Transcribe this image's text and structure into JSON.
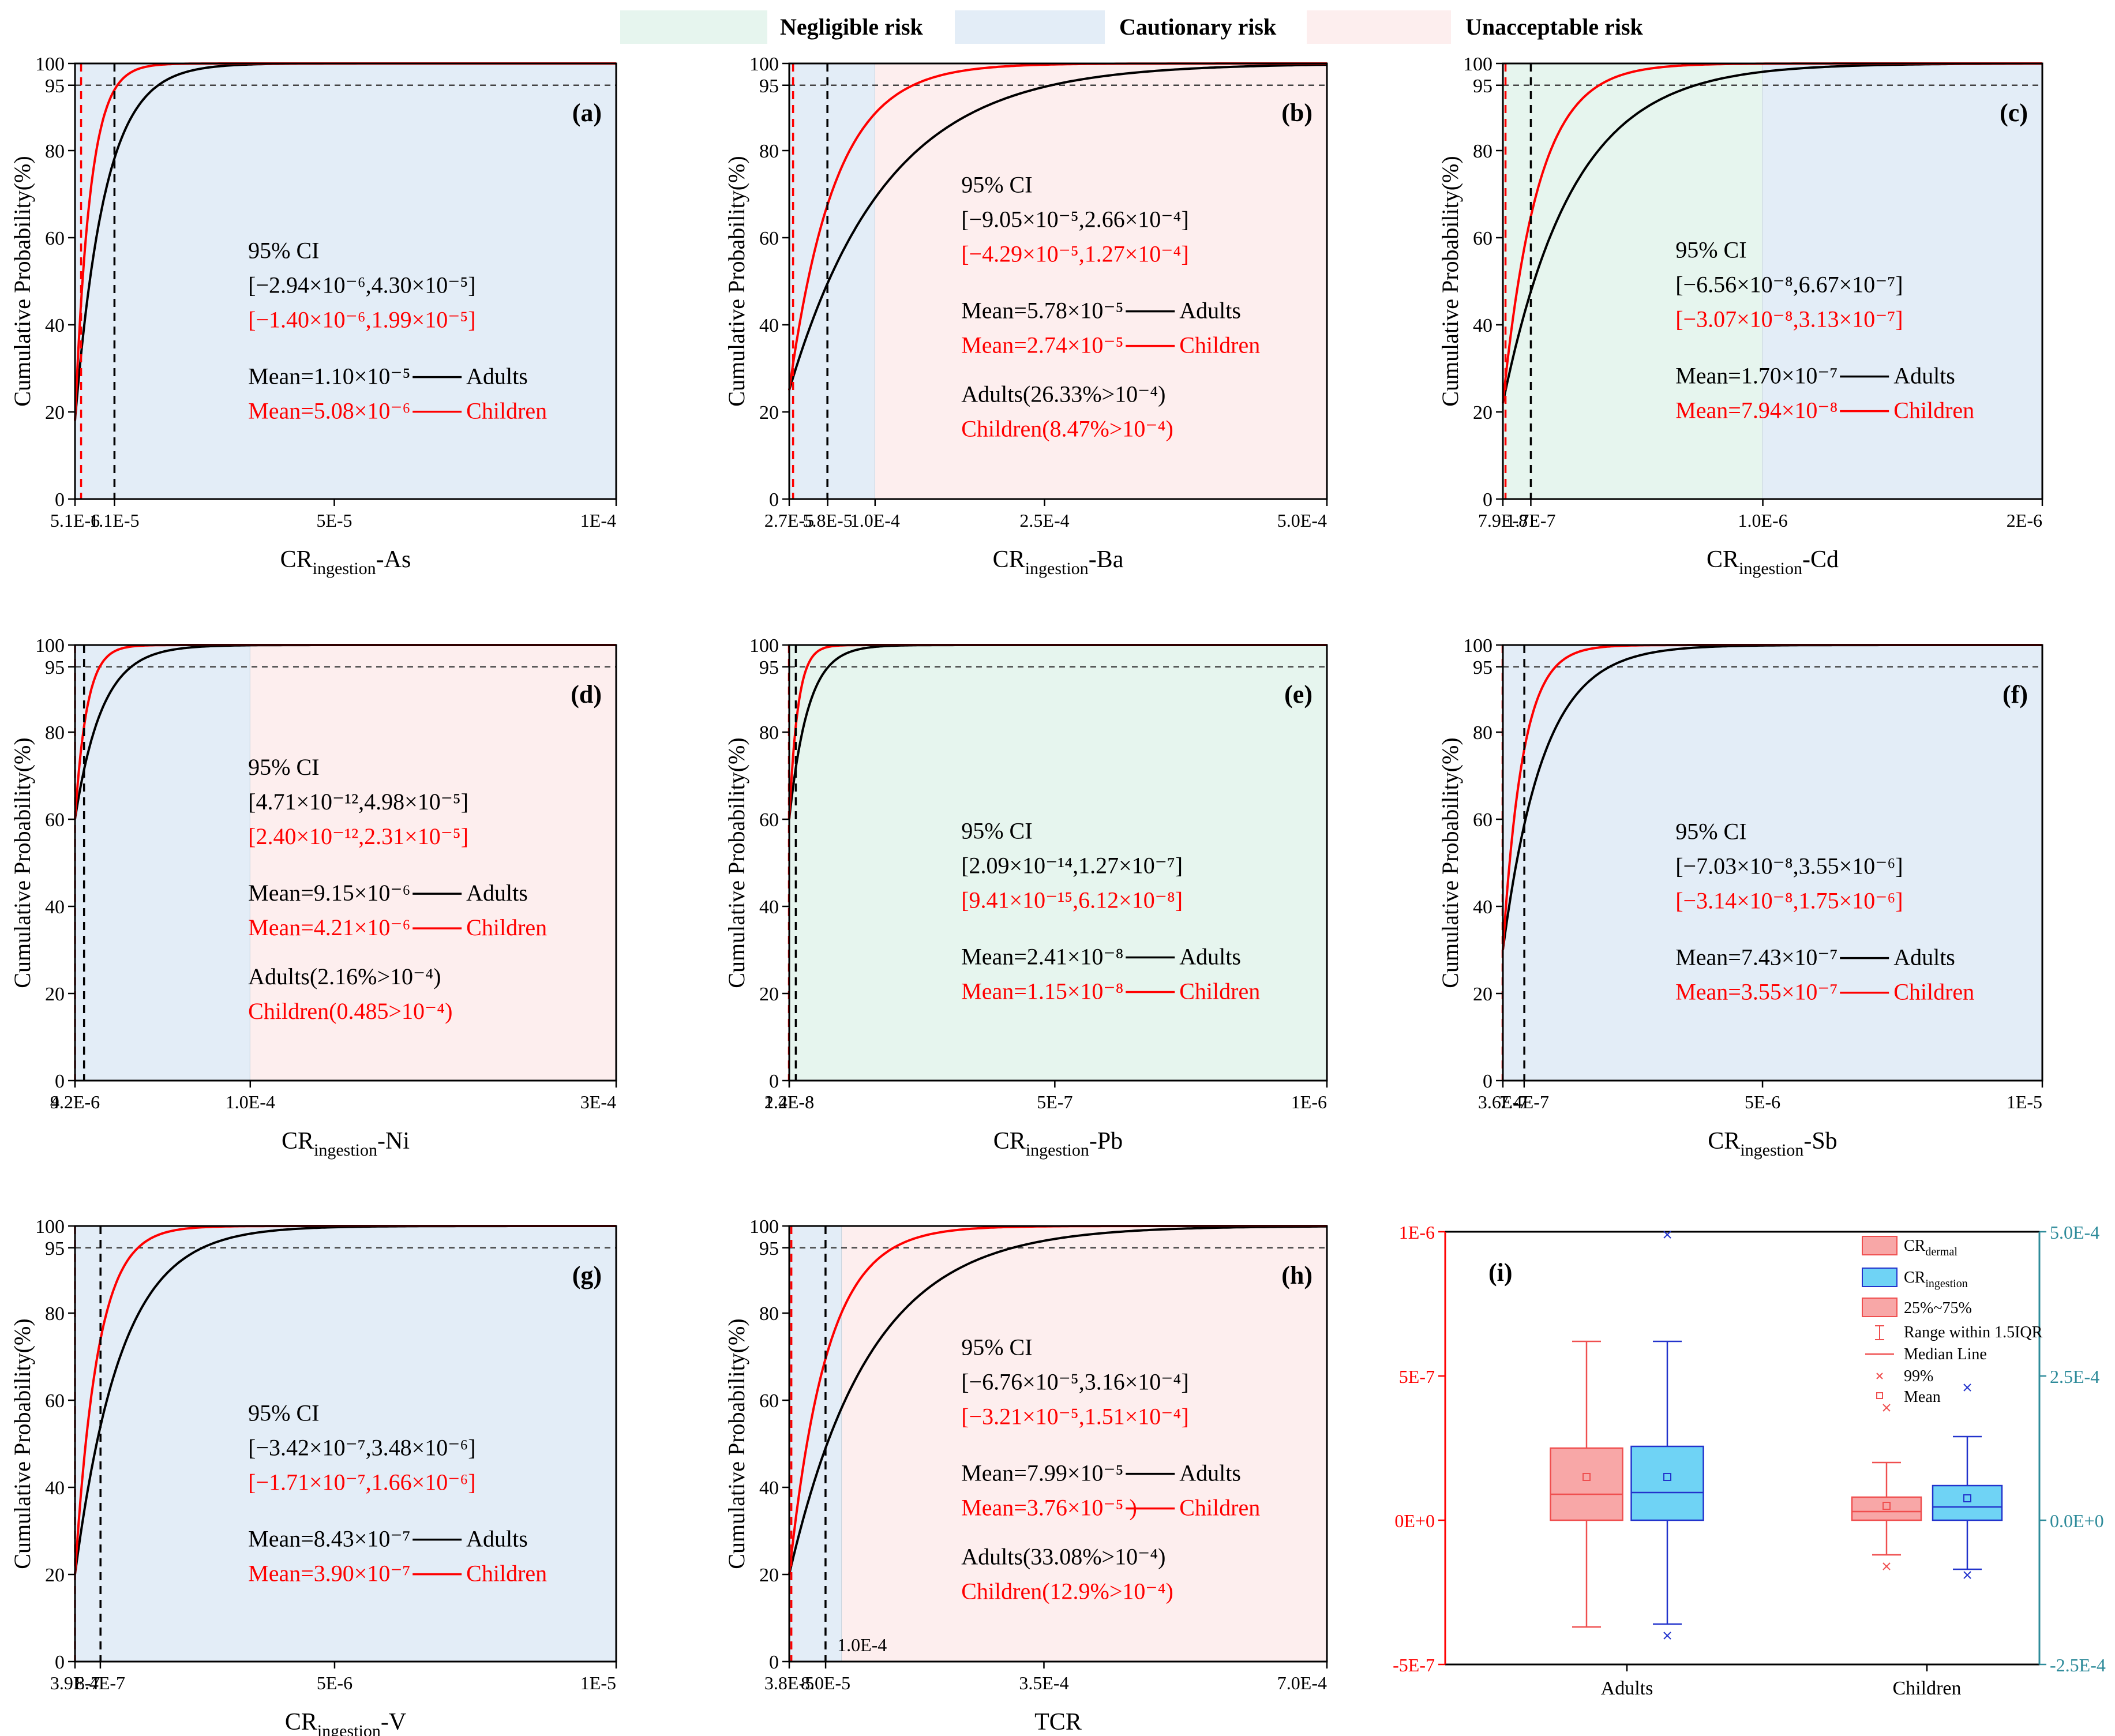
{
  "legend": {
    "negligible": "Negligible risk",
    "cautionary": "Cautionary risk",
    "unacceptable": "Unacceptable risk"
  },
  "colors": {
    "negligible": "#e6f5ee",
    "cautionary": "#e3edf7",
    "unacceptable": "#fdeeee",
    "adults": "#000000",
    "children": "#ff0000",
    "box_dermal": "#f8a7a7",
    "box_ingestion": "#6fd3f5",
    "right_axis": "#2e8b9a",
    "left_axis": "#ff0000"
  },
  "common": {
    "ylabel": "Cumulative Probability(%)",
    "yticks": [
      "20",
      "40",
      "60",
      "80",
      "95",
      "100"
    ],
    "zero": "0",
    "ci_title": "95% CI",
    "adults_label": "Adults",
    "children_label": "Children"
  },
  "chart_data": [
    {
      "panel": "(a)",
      "type": "line",
      "xlabel_main": "CR",
      "xlabel_sub": "ingestion",
      "xlabel_tail": "-As",
      "x_range": [
        "4.0E-6",
        "1E-4"
      ],
      "xticks": [
        "5.1E-6",
        "1.1E-5",
        "5E-5",
        "1E-4"
      ],
      "zones": [
        {
          "type": "cautionary",
          "from": "left",
          "to": "right"
        }
      ],
      "mean_lines": {
        "children": "5.08E-6",
        "adults": "1.10E-5"
      },
      "adults_curve": {
        "start_pct": 18,
        "shape": 0.055
      },
      "children_curve": {
        "start_pct": 18,
        "shape": 0.028
      },
      "ci_adults": "[−2.94×10⁻⁶,4.30×10⁻⁵]",
      "ci_children": "[−1.40×10⁻⁶,1.99×10⁻⁵]",
      "mean_adults": "Mean=1.10×10⁻⁵",
      "mean_children": "Mean=5.08×10⁻⁶",
      "exceed_adults": "",
      "exceed_children": ""
    },
    {
      "panel": "(b)",
      "type": "line",
      "xlabel_main": "CR",
      "xlabel_sub": "ingestion",
      "xlabel_tail": "-Ba",
      "x_range": [
        "2.4E-5",
        "5.0E-4"
      ],
      "xticks": [
        "2.7E-5",
        "5.8E-5",
        "1.0E-4",
        "2.5E-4",
        "5.0E-4"
      ],
      "zones": [
        {
          "type": "cautionary",
          "from": "left",
          "to": "1.0E-4"
        },
        {
          "type": "unacceptable",
          "from": "1.0E-4",
          "to": "right"
        }
      ],
      "mean_lines": {
        "children": "2.74E-5",
        "adults": "5.78E-5"
      },
      "adults_curve": {
        "start_pct": 25,
        "shape": 0.18
      },
      "children_curve": {
        "start_pct": 25,
        "shape": 0.085
      },
      "ci_adults": "[−9.05×10⁻⁵,2.66×10⁻⁴]",
      "ci_children": "[−4.29×10⁻⁵,1.27×10⁻⁴]",
      "mean_adults": "Mean=5.78×10⁻⁵",
      "mean_children": "Mean=2.74×10⁻⁵",
      "exceed_adults": "Adults(26.33%>10⁻⁴)",
      "exceed_children": "Children(8.47%>10⁻⁴)"
    },
    {
      "panel": "(c)",
      "type": "line",
      "xlabel_main": "CR",
      "xlabel_sub": "ingestion",
      "xlabel_tail": "-Cd",
      "x_range": [
        "7.0E-8",
        "2E-6"
      ],
      "xticks": [
        "7.9E-8",
        "1.7E-7",
        "1.0E-6",
        "2E-6"
      ],
      "zones": [
        {
          "type": "negligible",
          "from": "left",
          "to": "1.0E-6"
        },
        {
          "type": "cautionary",
          "from": "1.0E-6",
          "to": "right"
        }
      ],
      "mean_lines": {
        "children": "7.94E-8",
        "adults": "1.70E-7"
      },
      "adults_curve": {
        "start_pct": 22,
        "shape": 0.13
      },
      "children_curve": {
        "start_pct": 22,
        "shape": 0.065
      },
      "ci_adults": "[−6.56×10⁻⁸,6.67×10⁻⁷]",
      "ci_children": "[−3.07×10⁻⁸,3.13×10⁻⁷]",
      "mean_adults": "Mean=1.70×10⁻⁷",
      "mean_children": "Mean=7.94×10⁻⁸",
      "exceed_adults": "",
      "exceed_children": ""
    },
    {
      "panel": "(d)",
      "type": "line",
      "xlabel_main": "CR",
      "xlabel_sub": "ingestion",
      "xlabel_tail": "-Ni",
      "x_range": [
        "4.2E-6",
        "3E-4"
      ],
      "xticks": [
        "4.2E-6",
        "9.2E-6",
        "1.0E-4",
        "3E-4"
      ],
      "zones": [
        {
          "type": "cautionary",
          "from": "left",
          "to": "1.0E-4"
        },
        {
          "type": "unacceptable",
          "from": "1.0E-4",
          "to": "right"
        }
      ],
      "mean_lines": {
        "children": "4.21E-6",
        "adults": "9.15E-6"
      },
      "adults_curve": {
        "start_pct": 60,
        "shape": 0.05
      },
      "children_curve": {
        "start_pct": 60,
        "shape": 0.022
      },
      "ci_adults": "[4.71×10⁻¹²,4.98×10⁻⁵]",
      "ci_children": "[2.40×10⁻¹²,2.31×10⁻⁵]",
      "mean_adults": "Mean=9.15×10⁻⁶",
      "mean_children": "Mean=4.21×10⁻⁶",
      "exceed_adults": "Adults(2.16%>10⁻⁴)",
      "exceed_children": "Children(0.485>10⁻⁴)"
    },
    {
      "panel": "(e)",
      "type": "line",
      "xlabel_main": "CR",
      "xlabel_sub": "ingestion",
      "xlabel_tail": "-Pb",
      "x_range": [
        "1.2E-8",
        "1E-6"
      ],
      "xticks": [
        "1.2E-8",
        "2.4E-8",
        "5E-7",
        "1E-6"
      ],
      "zones": [
        {
          "type": "negligible",
          "from": "left",
          "to": "right"
        }
      ],
      "mean_lines": {
        "children": "1.15E-8",
        "adults": "2.41E-8"
      },
      "adults_curve": {
        "start_pct": 60,
        "shape": 0.035
      },
      "children_curve": {
        "start_pct": 60,
        "shape": 0.016
      },
      "ci_adults": "[2.09×10⁻¹⁴,1.27×10⁻⁷]",
      "ci_children": "[9.41×10⁻¹⁵,6.12×10⁻⁸]",
      "mean_adults": "Mean=2.41×10⁻⁸",
      "mean_children": "Mean=1.15×10⁻⁸",
      "exceed_adults": "",
      "exceed_children": ""
    },
    {
      "panel": "(f)",
      "type": "line",
      "xlabel_main": "CR",
      "xlabel_sub": "ingestion",
      "xlabel_tail": "-Sb",
      "x_range": [
        "3.6E-7",
        "1E-5"
      ],
      "xticks": [
        "3.6E-7",
        "7.4E-7",
        "5E-6",
        "1E-5"
      ],
      "zones": [
        {
          "type": "cautionary",
          "from": "left",
          "to": "right"
        }
      ],
      "mean_lines": {
        "children": "3.55E-7",
        "adults": "7.43E-7"
      },
      "adults_curve": {
        "start_pct": 30,
        "shape": 0.075
      },
      "children_curve": {
        "start_pct": 30,
        "shape": 0.037
      },
      "ci_adults": "[−7.03×10⁻⁸,3.55×10⁻⁶]",
      "ci_children": "[−3.14×10⁻⁸,1.75×10⁻⁶]",
      "mean_adults": "Mean=7.43×10⁻⁷",
      "mean_children": "Mean=3.55×10⁻⁷",
      "exceed_adults": "",
      "exceed_children": ""
    },
    {
      "panel": "(g)",
      "type": "line",
      "xlabel_main": "CR",
      "xlabel_sub": "ingestion",
      "xlabel_tail": "-V",
      "x_range": [
        "3.9E-7",
        "1E-5"
      ],
      "xticks": [
        "3.9E-7",
        "8.4E-7",
        "5E-6",
        "1E-5"
      ],
      "zones": [
        {
          "type": "cautionary",
          "from": "left",
          "to": "right"
        }
      ],
      "mean_lines": {
        "children": "3.90E-7",
        "adults": "8.43E-7"
      },
      "adults_curve": {
        "start_pct": 20,
        "shape": 0.085
      },
      "children_curve": {
        "start_pct": 20,
        "shape": 0.042
      },
      "ci_adults": "[−3.42×10⁻⁷,3.48×10⁻⁶]",
      "ci_children": "[−1.71×10⁻⁷,1.66×10⁻⁶]",
      "mean_adults": "Mean=8.43×10⁻⁷",
      "mean_children": "Mean=3.90×10⁻⁷",
      "exceed_adults": "",
      "exceed_children": ""
    },
    {
      "panel": "(h)",
      "type": "line",
      "xlabel_main": "TCR",
      "xlabel_sub": "",
      "xlabel_tail": "",
      "x_range": [
        "3.5E-5",
        "7.0E-4"
      ],
      "xticks": [
        "3.8E-5",
        "8.0E-5",
        "3.5E-4",
        "7.0E-4"
      ],
      "extra_tick": "1.0E-4",
      "zones": [
        {
          "type": "cautionary",
          "from": "left",
          "to": "1.0E-4"
        },
        {
          "type": "unacceptable",
          "from": "1.0E-4",
          "to": "right"
        }
      ],
      "mean_lines": {
        "children": "3.76E-5",
        "adults": "7.99E-5"
      },
      "adults_curve": {
        "start_pct": 20,
        "shape": 0.15
      },
      "children_curve": {
        "start_pct": 20,
        "shape": 0.07
      },
      "ci_adults": "[−6.76×10⁻⁵,3.16×10⁻⁴]",
      "ci_children": "[−3.21×10⁻⁵,1.51×10⁻⁴]",
      "mean_adults": "Mean=7.99×10⁻⁵",
      "mean_children": "Mean=3.76×10⁻⁵ )",
      "exceed_adults": "Adults(33.08%>10⁻⁴)",
      "exceed_children": "Children(12.9%>10⁻⁴)"
    },
    {
      "panel": "(i)",
      "type": "box",
      "categories": [
        "Adults",
        "Children"
      ],
      "left_axis": {
        "range": [
          -5e-07,
          1e-06
        ],
        "ticks": [
          "1E-6",
          "5E-7",
          "0E+0",
          "-5E-7"
        ]
      },
      "right_axis": {
        "range": [
          -0.00025,
          0.0005
        ],
        "ticks": [
          "5.0E-4",
          "2.5E-4",
          "0.0E+0",
          "-2.5E-4"
        ]
      },
      "series": [
        {
          "name": "CR_dermal",
          "axis": "left",
          "boxes": [
            {
              "whisker_low": -3.7e-07,
              "q1": 0.0,
              "median": 9e-08,
              "q3": 2.5e-07,
              "whisker_high": 6.2e-07,
              "mean": 1.5e-07,
              "p1": null,
              "p99": null
            },
            {
              "whisker_low": -1.2e-07,
              "q1": 0.0,
              "median": 3e-08,
              "q3": 8e-08,
              "whisker_high": 2e-07,
              "mean": 5e-08,
              "p1": -1.6e-07,
              "p99": 3.9e-07
            }
          ]
        },
        {
          "name": "CR_ingestion",
          "axis": "right",
          "boxes": [
            {
              "whisker_low": -0.00018,
              "q1": 0.0,
              "median": 4.8e-05,
              "q3": 0.000128,
              "whisker_high": 0.00031,
              "mean": 7.5e-05,
              "p1": -0.0002,
              "p99": 0.000495
            },
            {
              "whisker_low": -8.5e-05,
              "q1": 0.0,
              "median": 2.3e-05,
              "q3": 6e-05,
              "whisker_high": 0.000145,
              "mean": 3.8e-05,
              "p1": -9.5e-05,
              "p99": 0.00023
            }
          ]
        }
      ],
      "legend": {
        "dermal_main": "CR",
        "dermal_sub": "dermal",
        "ingestion_main": "CR",
        "ingestion_sub": "ingestion",
        "iqr": "25%~75%",
        "range": "Range within 1.5IQR",
        "median": "Median Line",
        "p99": "99%",
        "mean": "Mean"
      }
    }
  ]
}
